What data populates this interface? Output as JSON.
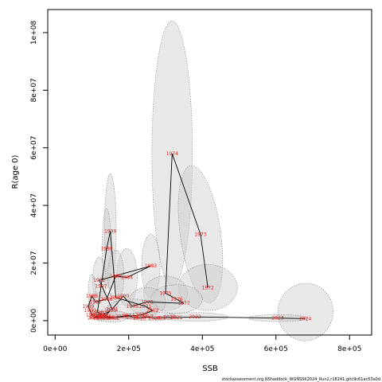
{
  "chart_data": {
    "type": "scatter",
    "xlabel": "SSB",
    "ylabel": "R(age 0)",
    "xlim": [
      -20000,
      860000
    ],
    "ylim": [
      -5000000,
      108000000
    ],
    "x_ticks": [
      {
        "value": 0,
        "label": "0e+00"
      },
      {
        "value": 200000,
        "label": "2e+05"
      },
      {
        "value": 400000,
        "label": "4e+05"
      },
      {
        "value": 600000,
        "label": "6e+05"
      },
      {
        "value": 800000,
        "label": "8e+05"
      }
    ],
    "y_ticks": [
      {
        "value": 0,
        "label": "0e+00"
      },
      {
        "value": 20000000,
        "label": "2e+07"
      },
      {
        "value": 40000000,
        "label": "4e+07"
      },
      {
        "value": 60000000,
        "label": "6e+07"
      },
      {
        "value": 80000000,
        "label": "8e+07"
      },
      {
        "value": 100000000,
        "label": "1e+08"
      }
    ],
    "path_color": "#000000",
    "label_color": "#e8211c",
    "ellipse_fill": "#cccccc",
    "ellipse_stroke": "#888888",
    "points": [
      {
        "label": "1972",
        "x": 415000,
        "y": 11500000
      },
      {
        "label": "1973",
        "x": 395000,
        "y": 30000000
      },
      {
        "label": "1974",
        "x": 318000,
        "y": 58000000
      },
      {
        "label": "1975",
        "x": 300000,
        "y": 9500000
      },
      {
        "label": "1976",
        "x": 330000,
        "y": 7500000
      },
      {
        "label": "1977",
        "x": 350000,
        "y": 6000000
      },
      {
        "label": "1978",
        "x": 250000,
        "y": 6500000
      },
      {
        "label": "1979",
        "x": 210000,
        "y": 5000000
      },
      {
        "label": "1980",
        "x": 185000,
        "y": 8500000
      },
      {
        "label": "1981",
        "x": 155000,
        "y": 4000000
      },
      {
        "label": "1982",
        "x": 120000,
        "y": 14000000
      },
      {
        "label": "1983",
        "x": 260000,
        "y": 19000000
      },
      {
        "label": "1984",
        "x": 195000,
        "y": 15000000
      },
      {
        "label": "1985",
        "x": 165000,
        "y": 15500000
      },
      {
        "label": "1986",
        "x": 140000,
        "y": 7500000
      },
      {
        "label": "1987",
        "x": 110000,
        "y": 6500000
      },
      {
        "label": "1988",
        "x": 100000,
        "y": 8500000
      },
      {
        "label": "1989",
        "x": 90000,
        "y": 5000000
      },
      {
        "label": "1990",
        "x": 95000,
        "y": 3500000
      },
      {
        "label": "1991",
        "x": 100000,
        "y": 2000000
      },
      {
        "label": "1992",
        "x": 130000,
        "y": 2000000
      },
      {
        "label": "1993",
        "x": 150000,
        "y": 3500000
      },
      {
        "label": "1994",
        "x": 135000,
        "y": 1500000
      },
      {
        "label": "1995",
        "x": 120000,
        "y": 2500000
      },
      {
        "label": "1996",
        "x": 115000,
        "y": 3000000
      },
      {
        "label": "1997",
        "x": 125000,
        "y": 12000000
      },
      {
        "label": "1998",
        "x": 140000,
        "y": 25000000
      },
      {
        "label": "1999",
        "x": 150000,
        "y": 31000000
      },
      {
        "label": "2000",
        "x": 165000,
        "y": 8000000
      },
      {
        "label": "2001",
        "x": 245000,
        "y": 5000000
      },
      {
        "label": "2002",
        "x": 265000,
        "y": 3500000
      },
      {
        "label": "2003",
        "x": 235000,
        "y": 2000000
      },
      {
        "label": "2004",
        "x": 155000,
        "y": 1000000
      },
      {
        "label": "2005",
        "x": 120000,
        "y": 1000000
      },
      {
        "label": "2006",
        "x": 110000,
        "y": 1200000
      },
      {
        "label": "2007",
        "x": 105000,
        "y": 1000000
      },
      {
        "label": "2008",
        "x": 110000,
        "y": 1400000
      },
      {
        "label": "2009",
        "x": 125000,
        "y": 1400000
      },
      {
        "label": "2010",
        "x": 130000,
        "y": 1000000
      },
      {
        "label": "2011",
        "x": 145000,
        "y": 1200000
      },
      {
        "label": "2012",
        "x": 160000,
        "y": 1000000
      },
      {
        "label": "2013",
        "x": 180000,
        "y": 1500000
      },
      {
        "label": "2014",
        "x": 200000,
        "y": 1800000
      },
      {
        "label": "2015",
        "x": 210000,
        "y": 1200000
      },
      {
        "label": "2016",
        "x": 230000,
        "y": 1000000
      },
      {
        "label": "2017",
        "x": 250000,
        "y": 1300000
      },
      {
        "label": "2018",
        "x": 270000,
        "y": 900000
      },
      {
        "label": "2019",
        "x": 285000,
        "y": 1000000
      },
      {
        "label": "2020",
        "x": 310000,
        "y": 1200000
      },
      {
        "label": "2021",
        "x": 330000,
        "y": 1100000
      },
      {
        "label": "2022",
        "x": 380000,
        "y": 1300000
      },
      {
        "label": "2023",
        "x": 605000,
        "y": 900000
      },
      {
        "label": "2024",
        "x": 680000,
        "y": 700000
      }
    ],
    "ellipses": [
      {
        "cx": 318000,
        "cy": 58000000,
        "rx": 55000,
        "ry": 46000000,
        "rot": 0
      },
      {
        "cx": 395000,
        "cy": 30000000,
        "rx": 55000,
        "ry": 24000000,
        "rot": 8
      },
      {
        "cx": 415000,
        "cy": 11500000,
        "rx": 80000,
        "ry": 8000000,
        "rot": 0
      },
      {
        "cx": 680000,
        "cy": 3000000,
        "rx": 75000,
        "ry": 10000000,
        "rot": -12
      },
      {
        "cx": 605000,
        "cy": 900000,
        "rx": 80000,
        "ry": 1200000,
        "rot": 0
      },
      {
        "cx": 260000,
        "cy": 19000000,
        "rx": 25000,
        "ry": 11000000,
        "rot": 0
      },
      {
        "cx": 150000,
        "cy": 31000000,
        "rx": 16000,
        "ry": 20000000,
        "rot": 0
      },
      {
        "cx": 140000,
        "cy": 25000000,
        "rx": 12000,
        "ry": 14000000,
        "rot": 0
      },
      {
        "cx": 195000,
        "cy": 15000000,
        "rx": 28000,
        "ry": 10000000,
        "rot": 0
      },
      {
        "cx": 165000,
        "cy": 15500000,
        "rx": 22000,
        "ry": 9000000,
        "rot": 0
      },
      {
        "cx": 300000,
        "cy": 9500000,
        "rx": 60000,
        "ry": 6000000,
        "rot": 0
      },
      {
        "cx": 330000,
        "cy": 7500000,
        "rx": 70000,
        "ry": 5000000,
        "rot": 0
      },
      {
        "cx": 250000,
        "cy": 6500000,
        "rx": 50000,
        "ry": 5000000,
        "rot": 0
      },
      {
        "cx": 120000,
        "cy": 14000000,
        "rx": 18000,
        "ry": 8000000,
        "rot": 0
      },
      {
        "cx": 100000,
        "cy": 10000000,
        "rx": 10000,
        "ry": 6000000,
        "rot": 0
      },
      {
        "cx": 130000,
        "cy": 5000000,
        "rx": 40000,
        "ry": 5000000,
        "rot": 0
      },
      {
        "cx": 210000,
        "cy": 4000000,
        "rx": 70000,
        "ry": 3500000,
        "rot": 0
      },
      {
        "cx": 380000,
        "cy": 1300000,
        "rx": 90000,
        "ry": 1500000,
        "rot": 0
      },
      {
        "cx": 260000,
        "cy": 1500000,
        "rx": 70000,
        "ry": 1500000,
        "rot": 0
      },
      {
        "cx": 150000,
        "cy": 1500000,
        "rx": 50000,
        "ry": 2000000,
        "rot": 0
      }
    ],
    "path_order": [
      "1972",
      "1973",
      "1974",
      "1975",
      "1976",
      "1977",
      "1978",
      "1979",
      "1980",
      "1981",
      "1982",
      "1983",
      "1984",
      "1985",
      "1986",
      "1987",
      "1988",
      "1989",
      "1990",
      "1991",
      "1992",
      "1993",
      "1994",
      "1995",
      "1996",
      "1997",
      "1998",
      "1999",
      "2000",
      "2001",
      "2002",
      "2003",
      "2004",
      "2005",
      "2006",
      "2007",
      "2008",
      "2009",
      "2010",
      "2011",
      "2012",
      "2013",
      "2014",
      "2015",
      "2016",
      "2017",
      "2018",
      "2019",
      "2020",
      "2021",
      "2022",
      "2023",
      "2024"
    ]
  },
  "footer": {
    "text": "stockassessment.org,NShaddock_WGNSSK2024_Run2,r18241,gitc9c61ac53a0d"
  }
}
